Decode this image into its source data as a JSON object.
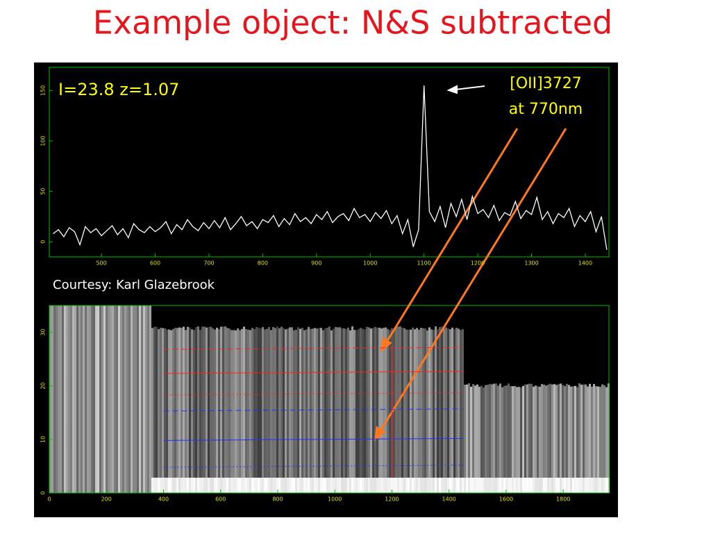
{
  "title": "Example object: N&S subtracted",
  "chart_data": [
    {
      "type": "line",
      "annotations": [
        "I=23.8 z=1.07",
        "[OII]3727",
        "at 770nm",
        "Courtesy: Karl Glazebrook"
      ],
      "x": [
        410,
        420,
        430,
        440,
        450,
        460,
        470,
        480,
        490,
        500,
        510,
        520,
        530,
        540,
        550,
        560,
        570,
        580,
        590,
        600,
        610,
        620,
        630,
        640,
        650,
        660,
        670,
        680,
        690,
        700,
        710,
        720,
        730,
        740,
        750,
        760,
        770,
        780,
        790,
        800,
        810,
        820,
        830,
        840,
        850,
        860,
        870,
        880,
        890,
        900,
        910,
        920,
        930,
        940,
        950,
        960,
        970,
        980,
        990,
        1000,
        1010,
        1020,
        1030,
        1040,
        1050,
        1060,
        1070,
        1080,
        1090,
        1100,
        1110,
        1120,
        1130,
        1140,
        1150,
        1160,
        1170,
        1180,
        1190,
        1200,
        1210,
        1220,
        1230,
        1240,
        1250,
        1260,
        1270,
        1280,
        1290,
        1300,
        1310,
        1320,
        1330,
        1340,
        1350,
        1360,
        1370,
        1380,
        1390,
        1400,
        1410,
        1420,
        1430,
        1440
      ],
      "values": [
        8,
        12,
        5,
        14,
        10,
        -3,
        15,
        9,
        13,
        6,
        11,
        16,
        7,
        13,
        4,
        18,
        12,
        9,
        15,
        10,
        14,
        20,
        8,
        17,
        12,
        22,
        15,
        11,
        19,
        13,
        21,
        14,
        24,
        12,
        18,
        25,
        16,
        20,
        13,
        22,
        19,
        26,
        15,
        23,
        17,
        28,
        20,
        24,
        18,
        27,
        22,
        30,
        19,
        25,
        28,
        21,
        33,
        24,
        27,
        20,
        29,
        23,
        31,
        18,
        26,
        8,
        22,
        -5,
        12,
        155,
        30,
        20,
        35,
        14,
        38,
        25,
        42,
        22,
        45,
        28,
        32,
        24,
        36,
        21,
        29,
        26,
        40,
        23,
        31,
        27,
        44,
        22,
        30,
        18,
        28,
        24,
        33,
        15,
        26,
        20,
        30,
        10,
        25,
        -8
      ],
      "color": "#ffffff",
      "xlim": [
        403,
        1444
      ],
      "ylim": [
        -15,
        173
      ],
      "xticks": [
        500,
        600,
        700,
        800,
        900,
        1000,
        1100,
        1200,
        1300,
        1400
      ],
      "yticks": [
        0,
        50,
        100,
        150
      ]
    },
    {
      "type": "image",
      "xlim": [
        0,
        1960
      ],
      "ylim": [
        0,
        35
      ],
      "xticks": [
        0,
        200,
        400,
        600,
        800,
        1000,
        1200,
        1400,
        1600,
        1800
      ],
      "yticks": [
        0,
        10,
        20,
        30
      ],
      "trace_start": 400,
      "trace_end": 1450,
      "red_rows": [
        27,
        22.5,
        18.5
      ],
      "blue_rows": [
        15.5,
        10,
        5
      ],
      "red_color": "#ff2020",
      "blue_color": "#2030ff",
      "marker_x": 1200
    }
  ]
}
